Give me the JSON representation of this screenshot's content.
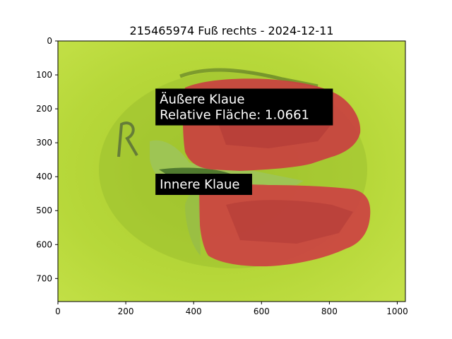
{
  "chart_data": {
    "type": "image",
    "title": "215465974 Fuß rechts - 2024-12-11",
    "xlabel": "",
    "ylabel": "",
    "xlim": [
      0,
      1024
    ],
    "ylim": [
      768,
      0
    ],
    "x_ticks": [
      0,
      200,
      400,
      600,
      800,
      1000
    ],
    "y_ticks": [
      0,
      100,
      200,
      300,
      400,
      500,
      600,
      700
    ],
    "grid": false,
    "annotations": [
      {
        "lines": [
          "Äußere Klaue",
          "Relative Fläche: 1.0661"
        ],
        "x": 300,
        "y": 230
      },
      {
        "lines": [
          "Innere Klaue"
        ],
        "x": 300,
        "y": 435
      }
    ],
    "regions": [
      {
        "name": "Äußere Klaue",
        "color": "#c73a3a"
      },
      {
        "name": "Innere Klaue",
        "color": "#c73a3a"
      }
    ],
    "background_color": "#b5d633"
  }
}
